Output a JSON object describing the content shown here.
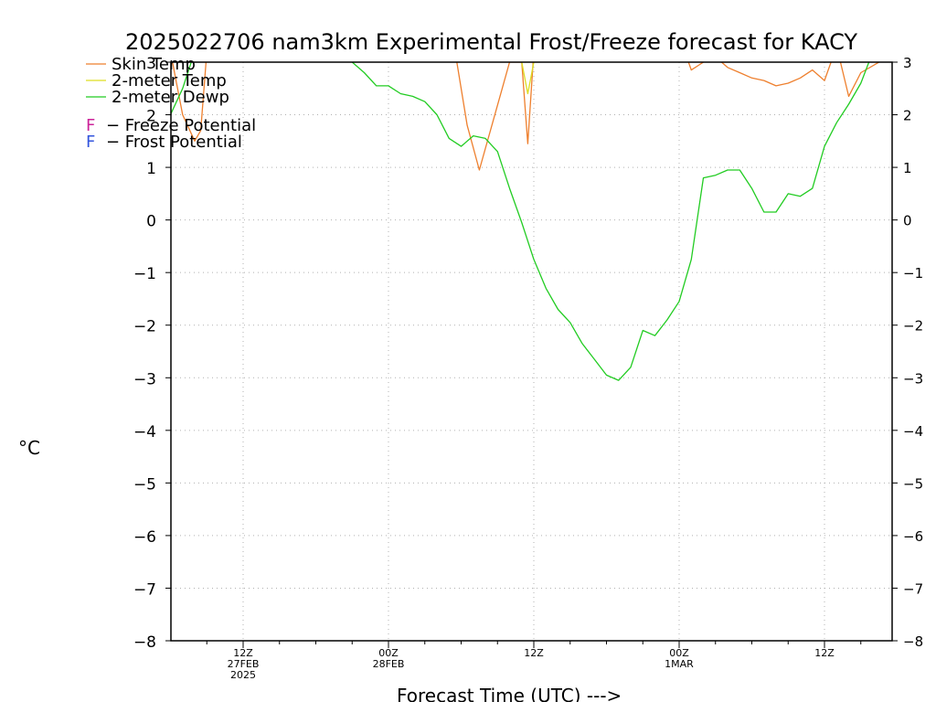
{
  "chart_data": {
    "type": "line",
    "title": "2025022706 nam3km Experimental Frost/Freeze forecast for KACY",
    "ylabel": "°C",
    "xlabel": "Forecast Time (UTC) --->",
    "ylim": [
      -8,
      3
    ],
    "xlim": [
      6,
      60
    ],
    "grid": true,
    "legend_position": "top-left",
    "y_ticks": [
      3,
      2,
      1,
      0,
      -1,
      -2,
      -3,
      -4,
      -5,
      -6,
      -7,
      -8
    ],
    "y_tick_labels": [
      "3",
      "2",
      "1",
      "0",
      "−1",
      "−2",
      "−3",
      "−4",
      "−5",
      "−6",
      "−7",
      "−8"
    ],
    "x_ticks": [
      {
        "x": 12,
        "lines": [
          "12Z",
          "27FEB",
          "2025"
        ]
      },
      {
        "x": 24,
        "lines": [
          "00Z",
          "28FEB"
        ]
      },
      {
        "x": 36,
        "lines": [
          "12Z"
        ]
      },
      {
        "x": 48,
        "lines": [
          "00Z",
          "1MAR"
        ]
      },
      {
        "x": 60,
        "lines": [
          "12Z"
        ]
      }
    ],
    "series": [
      {
        "name": "Skin Temp",
        "color": "#ee7f2d",
        "x": [
          6,
          7,
          8,
          8.5,
          9,
          16,
          18,
          21,
          24,
          26,
          27,
          29.5,
          30.5,
          31.5,
          34,
          35,
          35.5,
          36,
          37,
          48,
          49,
          50,
          51,
          52,
          53,
          54,
          55,
          56,
          57,
          58,
          59,
          60,
          61,
          62,
          63,
          66
        ],
        "values": [
          3.2,
          2.0,
          1.5,
          1.7,
          3.2,
          3.5,
          3.5,
          3.5,
          3.5,
          3.4,
          3.5,
          3.2,
          1.8,
          0.95,
          3.0,
          3.0,
          1.45,
          3.2,
          3.5,
          3.5,
          2.85,
          3.0,
          3.1,
          2.9,
          2.8,
          2.7,
          2.65,
          2.55,
          2.6,
          2.7,
          2.85,
          2.65,
          3.3,
          2.35,
          2.8,
          3.2
        ]
      },
      {
        "name": "2-meter Temp",
        "color": "#dddd22",
        "x": [
          35,
          35.5,
          36
        ],
        "values": [
          3.0,
          2.4,
          3.0
        ]
      },
      {
        "name": "2-meter Dewp",
        "color": "#22cc22",
        "x": [
          6,
          7,
          8,
          8.5,
          9,
          16,
          20,
          21,
          22,
          23,
          24,
          25,
          26,
          27,
          28,
          29,
          30,
          31,
          32,
          33,
          34,
          35,
          36,
          37,
          38,
          39,
          40,
          41,
          42,
          43,
          44,
          45,
          46,
          47,
          48,
          49,
          50,
          51,
          52,
          53,
          54,
          55,
          56,
          57,
          58,
          59,
          60,
          61,
          62,
          63,
          64,
          65,
          66
        ],
        "values": [
          2.0,
          2.5,
          3.2,
          3.5,
          3.5,
          3.5,
          3.5,
          3.0,
          2.8,
          2.55,
          2.55,
          2.4,
          2.35,
          2.25,
          2.0,
          1.55,
          1.4,
          1.6,
          1.55,
          1.3,
          0.6,
          -0.05,
          -0.75,
          -1.3,
          -1.7,
          -1.95,
          -2.35,
          -2.65,
          -2.95,
          -3.05,
          -2.8,
          -2.1,
          -2.2,
          -1.9,
          -1.55,
          -0.75,
          0.8,
          0.85,
          0.95,
          0.95,
          0.6,
          0.15,
          0.15,
          0.5,
          0.45,
          0.6,
          1.4,
          1.85,
          2.2,
          2.6,
          3.2,
          3.5,
          3.5
        ]
      }
    ],
    "potential_legend": [
      {
        "marker": "F",
        "label": "− Freeze Potential",
        "color": "#cc2299"
      },
      {
        "marker": "F",
        "label": "− Frost Potential",
        "color": "#3355dd"
      }
    ]
  }
}
